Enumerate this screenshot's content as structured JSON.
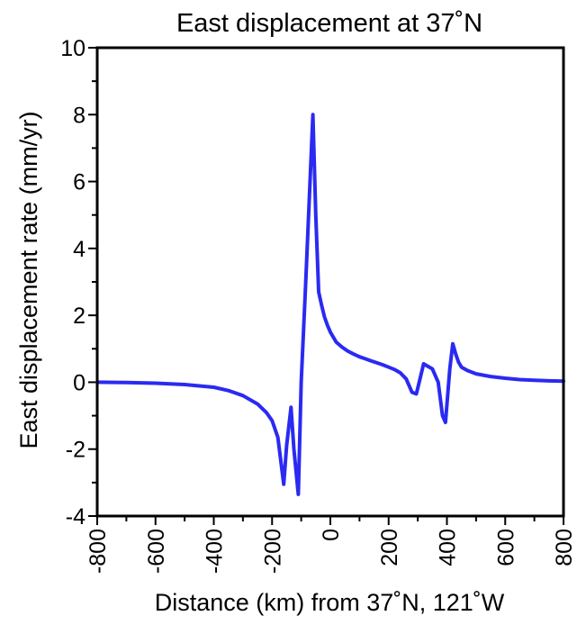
{
  "chart_data": {
    "type": "line",
    "title": "East displacement at 37˚N",
    "xlabel": "Distance (km) from 37˚N, 121˚W",
    "ylabel": "East displacement rate (mm/yr)",
    "xlim": [
      -800,
      800
    ],
    "ylim": [
      -4,
      10
    ],
    "x_ticks": [
      -800,
      -600,
      -400,
      -200,
      0,
      200,
      400,
      600,
      800
    ],
    "x_tick_labels": [
      "-800",
      "-600",
      "-400",
      "-200",
      "0",
      "200",
      "400",
      "600",
      "800"
    ],
    "y_ticks": [
      -4,
      -2,
      0,
      2,
      4,
      6,
      8,
      10
    ],
    "y_tick_labels": [
      "-4",
      "-2",
      "0",
      "2",
      "4",
      "6",
      "8",
      "10"
    ],
    "grid": false,
    "line_color": "#2a2af2",
    "series": [
      {
        "x": [
          -800,
          -700,
          -600,
          -500,
          -400,
          -350,
          -300,
          -250,
          -220,
          -200,
          -180,
          -160,
          -150,
          -135,
          -125,
          -110,
          -100,
          -85,
          -60,
          -50,
          -40,
          -30,
          -20,
          -10,
          0,
          10,
          20,
          40,
          60,
          80,
          100,
          120,
          140,
          160,
          180,
          200,
          220,
          240,
          260,
          280,
          295,
          302,
          320,
          330,
          350,
          370,
          385,
          395,
          410,
          420,
          430,
          440,
          450,
          470,
          500,
          550,
          600,
          650,
          700,
          750,
          800
        ],
        "y": [
          0.0,
          -0.01,
          -0.03,
          -0.07,
          -0.15,
          -0.25,
          -0.4,
          -0.65,
          -0.9,
          -1.15,
          -1.65,
          -3.05,
          -1.9,
          -0.75,
          -2.0,
          -3.35,
          0.0,
          2.9,
          8.0,
          5.0,
          2.7,
          2.3,
          1.95,
          1.7,
          1.5,
          1.35,
          1.2,
          1.05,
          0.93,
          0.84,
          0.76,
          0.7,
          0.64,
          0.58,
          0.52,
          0.45,
          0.38,
          0.28,
          0.1,
          -0.3,
          -0.35,
          -0.1,
          0.55,
          0.5,
          0.4,
          0.0,
          -1.0,
          -1.2,
          0.4,
          1.15,
          0.85,
          0.6,
          0.45,
          0.35,
          0.25,
          0.17,
          0.12,
          0.08,
          0.06,
          0.04,
          0.03
        ]
      }
    ]
  }
}
